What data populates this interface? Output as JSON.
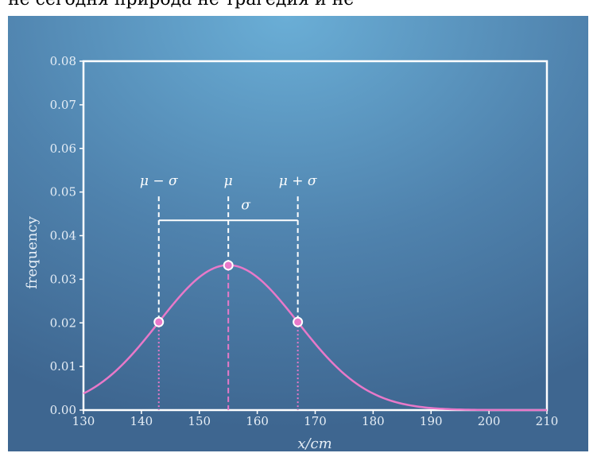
{
  "header_fragment": "не сегодня  природа  не трагедия  и  не",
  "chart_data": {
    "type": "line",
    "title": "",
    "xlabel": "x/cm",
    "ylabel": "frequency",
    "xlim": [
      130,
      210
    ],
    "ylim": [
      0,
      0.08
    ],
    "x_ticks": [
      "130",
      "140",
      "150",
      "160",
      "170",
      "180",
      "190",
      "200",
      "210"
    ],
    "y_ticks": [
      "0.00",
      "0.01",
      "0.02",
      "0.03",
      "0.04",
      "0.05",
      "0.06",
      "0.07",
      "0.08"
    ],
    "distribution": {
      "kind": "normal",
      "mu": 155,
      "sigma": 12
    },
    "series": [
      {
        "x": [
          130,
          135,
          140,
          143,
          145,
          150,
          155,
          160,
          165,
          167,
          170,
          175,
          180,
          185,
          190,
          195,
          200,
          205,
          210
        ],
        "y": [
          0.0038,
          0.0084,
          0.0153,
          0.0202,
          0.0234,
          0.0304,
          0.0332,
          0.0304,
          0.0234,
          0.0202,
          0.0153,
          0.0084,
          0.0038,
          0.0015,
          0.0005,
          0.0001,
          0.0,
          0.0,
          0.0
        ]
      }
    ],
    "markers": [
      {
        "label": "μ − σ",
        "x": 143,
        "y": 0.0202
      },
      {
        "label": "μ",
        "x": 155,
        "y": 0.0332
      },
      {
        "label": "μ + σ",
        "x": 167,
        "y": 0.0202
      }
    ],
    "sigma_bracket": {
      "label": "σ",
      "x_start": 143,
      "x_end": 167,
      "y": 0.0435
    },
    "marker_line_top": 0.049,
    "grid": false,
    "colors": {
      "curve": "#e879c9",
      "annotation": "#ffffff",
      "background_center": "#6aaed6",
      "background_edge": "#3e6690"
    }
  }
}
